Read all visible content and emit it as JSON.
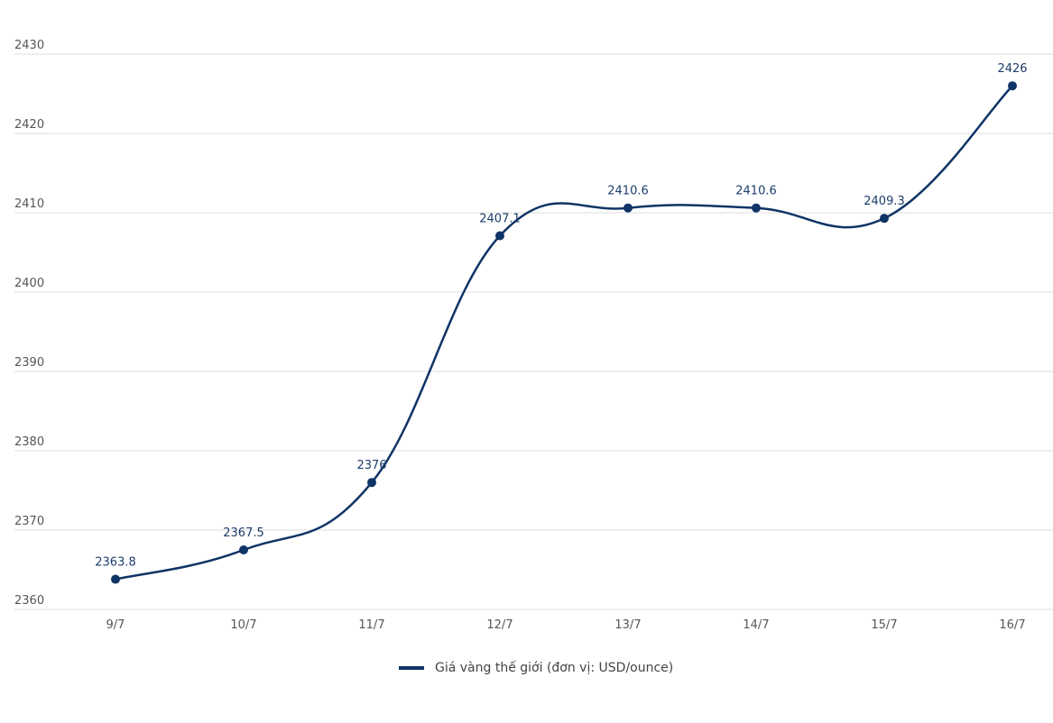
{
  "chart_data": {
    "type": "line",
    "title": "",
    "xlabel": "",
    "ylabel": "",
    "categories": [
      "9/7",
      "10/7",
      "11/7",
      "12/7",
      "13/7",
      "14/7",
      "15/7",
      "16/7"
    ],
    "series": [
      {
        "name": "Giá vàng thế giới (đơn vị: USD/ounce)",
        "values": [
          2363.8,
          2367.5,
          2376,
          2407.1,
          2410.6,
          2410.6,
          2409.3,
          2426
        ],
        "labels": [
          "2363.8",
          "2367.5",
          "2376",
          "2407.1",
          "2410.6",
          "2410.6",
          "2409.3",
          "2426"
        ],
        "color": "#0f3466"
      }
    ],
    "yticks": [
      2360,
      2370,
      2380,
      2390,
      2400,
      2410,
      2420,
      2430
    ],
    "ylim": [
      2360,
      2430
    ],
    "grid": true,
    "smooth": true,
    "legend_position": "bottom"
  },
  "legend": {
    "label": "Giá vàng thế giới (đơn vị: USD/ounce)"
  },
  "colors": {
    "line": "#0f3466",
    "label": "#1d3d6b",
    "grid": "#dddddd",
    "tick": "#555555"
  }
}
